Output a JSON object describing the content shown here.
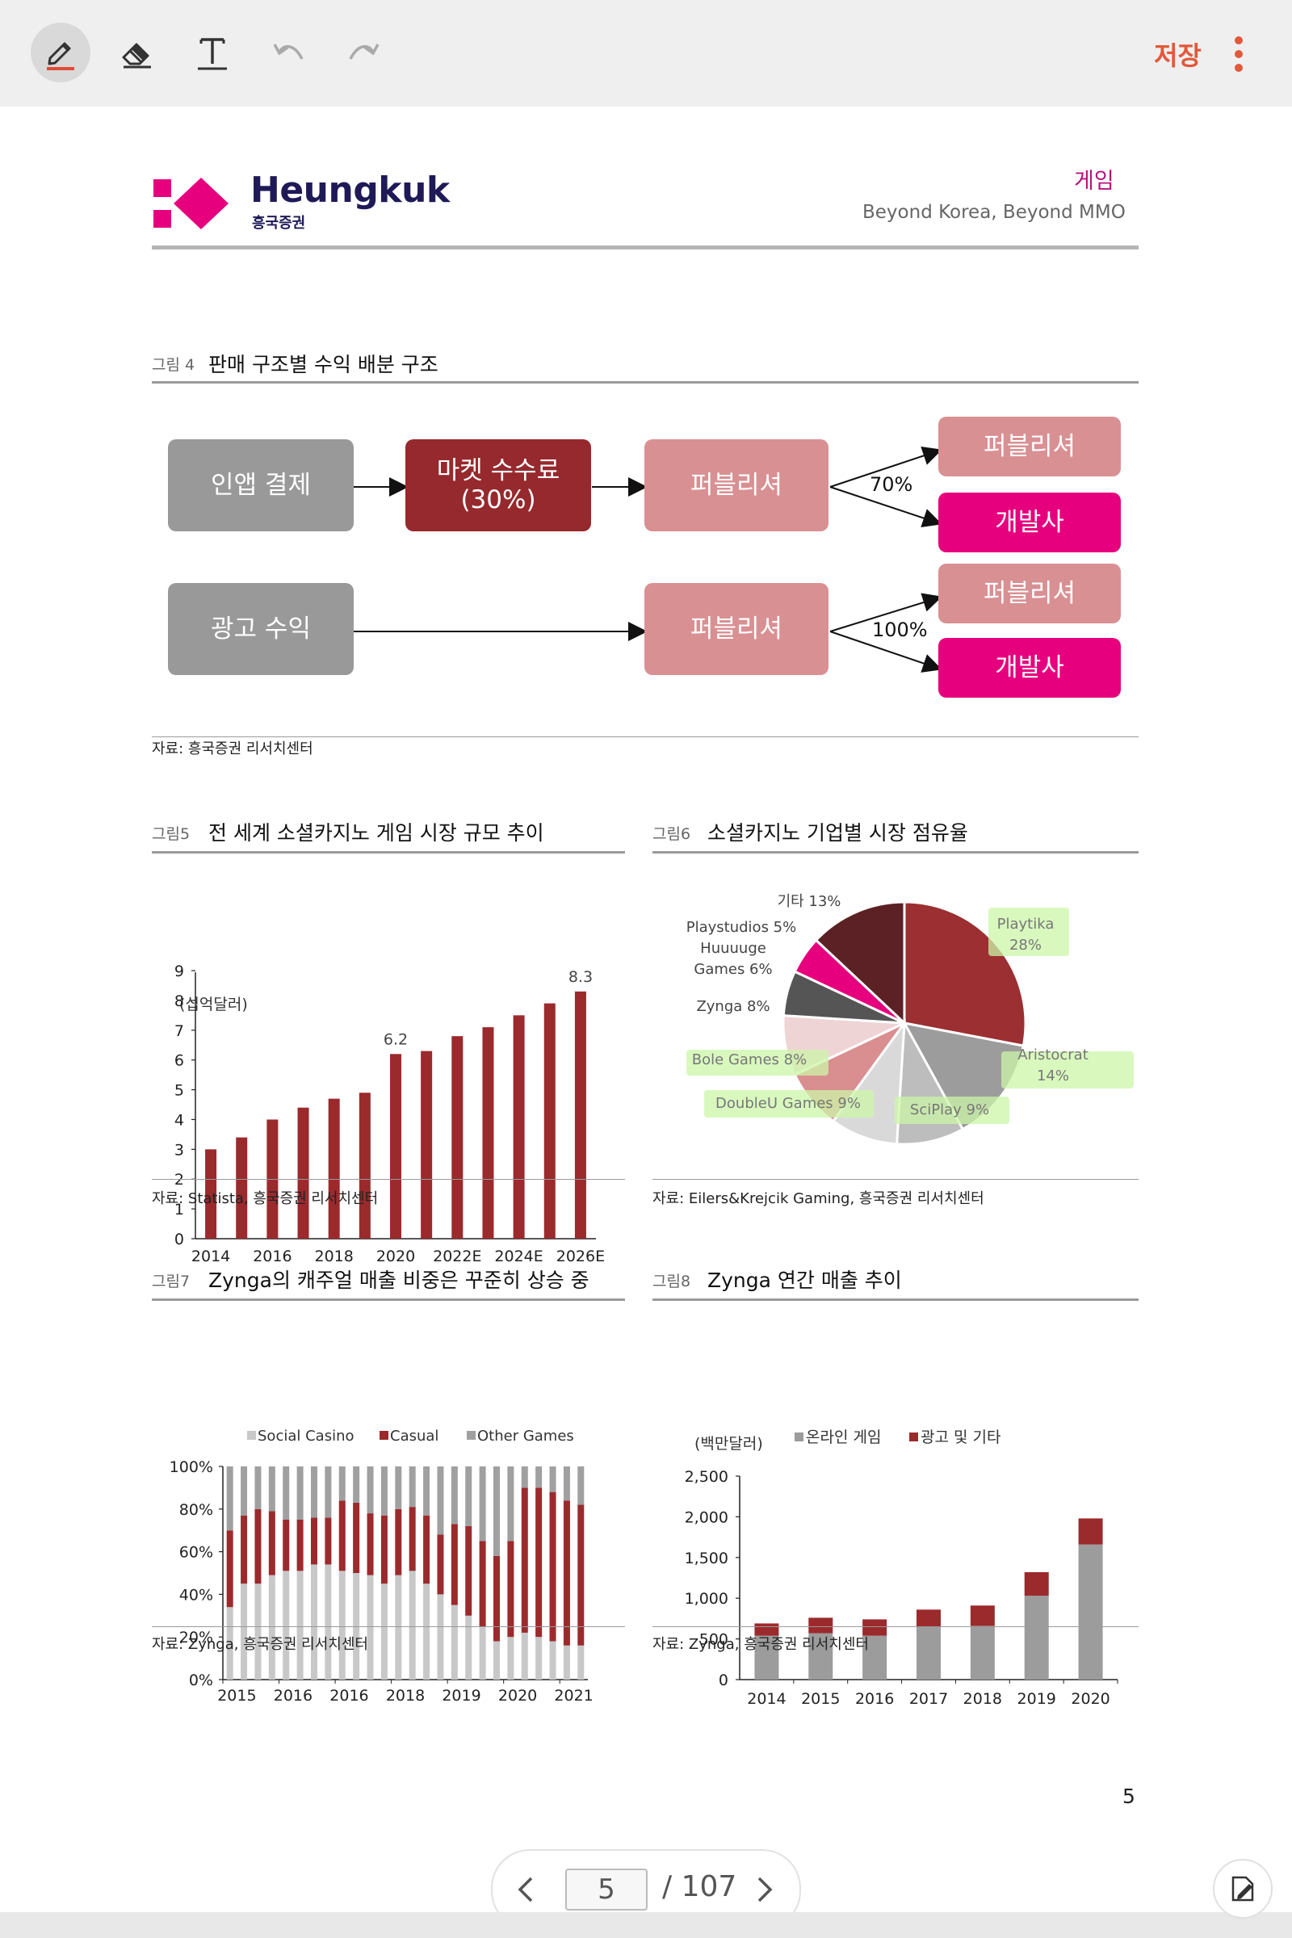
{
  "toolbar": {
    "tools": [
      {
        "name": "pen-icon"
      },
      {
        "name": "eraser-icon"
      },
      {
        "name": "text-tool-icon"
      },
      {
        "name": "undo-icon"
      },
      {
        "name": "redo-icon"
      }
    ],
    "save_label": "저장",
    "accent": "#e2583a"
  },
  "header": {
    "brand": "Heungkuk",
    "brand_sub": "흥국증권",
    "category": "게임",
    "tagline": "Beyond Korea, Beyond MMO",
    "brand_color": "#1f1a57",
    "logo_color": "#e6007e"
  },
  "fig4": {
    "num": "그림 4",
    "title": "판매 구조별 수익 배분 구조",
    "nodes": {
      "inapp": "인앱 결제",
      "market": "마켓 수수료\n(30%)",
      "publisher1": "퍼블리셔",
      "pub_out1": "퍼블리셔",
      "dev_out1": "개발사",
      "ad": "광고 수익",
      "publisher2": "퍼블리셔",
      "pub_out2": "퍼블리셔",
      "dev_out2": "개발사"
    },
    "label_70": "70%",
    "label_100": "100%",
    "source": "자료: 흥국증권 리서치센터"
  },
  "fig5": {
    "num": "그림5",
    "title": "전 세계 소셜카지노 게임 시장 규모 추이",
    "source": "자료: Statista, 흥국증권 리서치센터"
  },
  "fig6": {
    "num": "그림6",
    "title": "소셜카지노 기업별 시장 점유율",
    "source": "자료: Eilers&Krejcik Gaming, 흥국증권 리서치센터"
  },
  "fig7": {
    "num": "그림7",
    "title": "Zynga의 캐주얼 매출 비중은 꾸준히 상승 중",
    "source": "자료: Zynga, 흥국증권 리서치센터"
  },
  "fig8": {
    "num": "그림8",
    "title": "Zynga 연간 매출 추이",
    "source": "자료: Zynga, 흥국증권 리서치센터"
  },
  "chart_data": [
    {
      "id": "fig5",
      "type": "bar",
      "ylabel": "(십억달러)",
      "ylim": [
        0,
        9
      ],
      "yticks": [
        "0",
        "1",
        "2",
        "3",
        "4",
        "5",
        "6",
        "7",
        "8",
        "9"
      ],
      "categories": [
        "2014",
        "2015",
        "2016",
        "2017",
        "2018",
        "2019",
        "2020",
        "2021",
        "2022E",
        "2023E",
        "2024E",
        "2025E",
        "2026E"
      ],
      "xtick_labels": [
        "2014",
        "2016",
        "2018",
        "2020",
        "2022E",
        "2024E",
        "2026E"
      ],
      "values": [
        3.0,
        3.4,
        4.0,
        4.4,
        4.7,
        4.9,
        6.2,
        6.3,
        6.8,
        7.1,
        7.5,
        7.9,
        8.3
      ],
      "data_labels": [
        {
          "index": 6,
          "text": "6.2"
        },
        {
          "index": 12,
          "text": "8.3"
        }
      ],
      "color": "#9b2a2d"
    },
    {
      "id": "fig6",
      "type": "pie",
      "slices": [
        {
          "label": "Playtika",
          "pct_label": "28%",
          "value": 28,
          "color": "#9b2f31"
        },
        {
          "label": "Aristocrat",
          "pct_label": "14%",
          "value": 14,
          "color": "#9c9c9c"
        },
        {
          "label": "SciPlay",
          "pct_label": "9%",
          "value": 9,
          "color": "#bdbdbd"
        },
        {
          "label": "DoubleU Games",
          "pct_label": "9%",
          "value": 9,
          "color": "#d9d9d9"
        },
        {
          "label": "Bole Games",
          "pct_label": "8%",
          "value": 8,
          "color": "#d98e90"
        },
        {
          "label": "Zynga",
          "pct_label": "8%",
          "value": 8,
          "color": "#efd4d5"
        },
        {
          "label": "Huuuuge Games",
          "pct_label": "6%",
          "value": 6,
          "color": "#555555"
        },
        {
          "label": "Playstudios",
          "pct_label": "5%",
          "value": 5,
          "color": "#e6007e"
        },
        {
          "label": "기타",
          "pct_label": "13%",
          "value": 13,
          "color": "#5c2124"
        }
      ],
      "label_texts": {
        "Playtika": [
          "Playtika",
          "28%"
        ],
        "Aristocrat": [
          "Aristocrat",
          "14%"
        ],
        "SciPlay": [
          "SciPlay 9%"
        ],
        "DoubleU Games": [
          "DoubleU Games 9%"
        ],
        "Bole Games": [
          "Bole Games 8%"
        ],
        "Zynga": [
          "Zynga 8%"
        ],
        "Huuuuge Games": [
          "Huuuuge",
          "Games 6%"
        ],
        "Playstudios": [
          "Playstudios 5%"
        ],
        "기타": [
          "기타 13%"
        ]
      },
      "highlight_color": "#ccf5a8"
    },
    {
      "id": "fig7",
      "type": "bar",
      "stacked": true,
      "series": [
        {
          "name": "Social Casino",
          "color": "#c8c8c8",
          "values": [
            34,
            45,
            45,
            49,
            51,
            51,
            54,
            54,
            51,
            50,
            49,
            45,
            49,
            51,
            45,
            40,
            35,
            30,
            25,
            18,
            20,
            22,
            20,
            18,
            16,
            16
          ]
        },
        {
          "name": "Casual",
          "color": "#9b2a2d",
          "values": [
            36,
            32,
            35,
            30,
            24,
            24,
            22,
            22,
            33,
            33,
            29,
            32,
            31,
            30,
            32,
            28,
            38,
            42,
            40,
            40,
            45,
            68,
            70,
            70,
            68,
            66
          ]
        },
        {
          "name": "Other Games",
          "color": "#a0a0a0",
          "values": [
            30,
            23,
            20,
            21,
            25,
            25,
            24,
            24,
            16,
            17,
            22,
            23,
            20,
            19,
            23,
            32,
            27,
            28,
            35,
            42,
            35,
            10,
            10,
            12,
            16,
            18
          ]
        }
      ],
      "xtick_labels": [
        "2015",
        "2016",
        "2016",
        "2018",
        "2019",
        "2020",
        "2021"
      ],
      "yticks": [
        "0%",
        "20%",
        "40%",
        "60%",
        "80%",
        "100%"
      ],
      "ylim": [
        0,
        100
      ]
    },
    {
      "id": "fig8",
      "type": "bar",
      "stacked": true,
      "ylabel": "(백만달러)",
      "categories": [
        "2014",
        "2015",
        "2016",
        "2017",
        "2018",
        "2019",
        "2020"
      ],
      "series": [
        {
          "name": "온라인 게임",
          "color": "#9c9c9c",
          "values": [
            540,
            570,
            540,
            650,
            660,
            1030,
            1660
          ]
        },
        {
          "name": "광고 및 기타",
          "color": "#9b2a2d",
          "values": [
            150,
            190,
            200,
            210,
            250,
            290,
            320
          ]
        }
      ],
      "yticks": [
        "0",
        "500",
        "1,000",
        "1,500",
        "2,000",
        "2,500"
      ],
      "ylim": [
        0,
        2500
      ]
    }
  ],
  "page_number": "5",
  "pager": {
    "current": "5",
    "total": "/ 107"
  }
}
